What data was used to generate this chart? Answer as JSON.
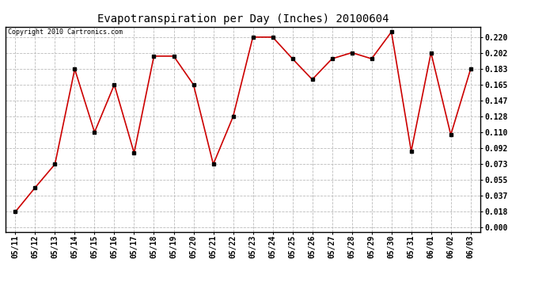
{
  "title": "Evapotranspiration per Day (Inches) 20100604",
  "copyright": "Copyright 2010 Cartronics.com",
  "x_labels": [
    "05/11",
    "05/12",
    "05/13",
    "05/14",
    "05/15",
    "05/16",
    "05/17",
    "05/18",
    "05/19",
    "05/20",
    "05/21",
    "05/22",
    "05/23",
    "05/24",
    "05/25",
    "05/26",
    "05/27",
    "05/28",
    "05/29",
    "05/30",
    "05/31",
    "06/01",
    "06/02",
    "06/03"
  ],
  "y_values": [
    0.018,
    0.046,
    0.073,
    0.183,
    0.11,
    0.165,
    0.086,
    0.198,
    0.198,
    0.165,
    0.073,
    0.128,
    0.22,
    0.22,
    0.195,
    0.171,
    0.195,
    0.202,
    0.195,
    0.226,
    0.088,
    0.202,
    0.107,
    0.183
  ],
  "line_color": "#cc0000",
  "marker_color": "#000000",
  "bg_color": "#ffffff",
  "grid_color": "#bbbbbb",
  "y_ticks": [
    0.0,
    0.018,
    0.037,
    0.055,
    0.073,
    0.092,
    0.11,
    0.128,
    0.147,
    0.165,
    0.183,
    0.202,
    0.22
  ],
  "y_min": 0.0,
  "y_max": 0.22,
  "title_fontsize": 10,
  "tick_fontsize": 7,
  "copyright_fontsize": 6
}
